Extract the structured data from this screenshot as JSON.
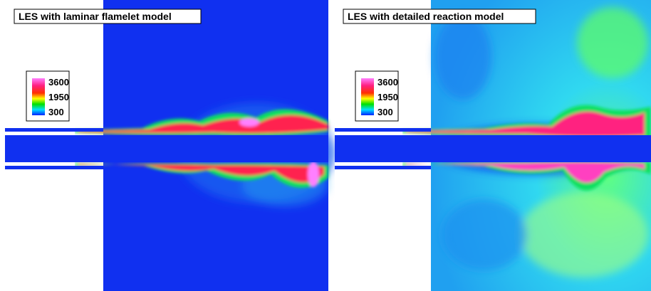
{
  "panels": [
    {
      "title": "LES with laminar flamelet model",
      "colorbar": {
        "labels": [
          3600,
          1950,
          300
        ]
      }
    },
    {
      "title": "LES with detailed reaction model",
      "colorbar": {
        "labels": [
          3600,
          1950,
          300
        ]
      }
    }
  ]
}
